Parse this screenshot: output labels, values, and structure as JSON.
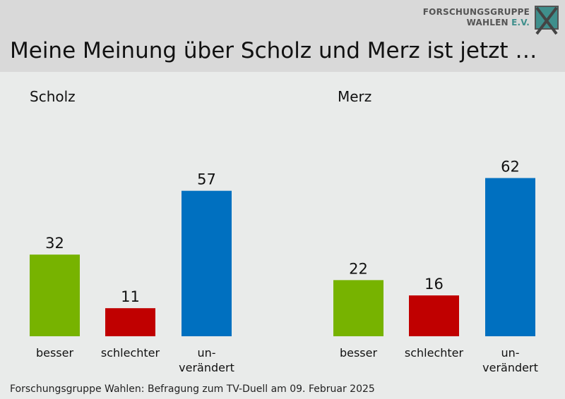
{
  "header": {
    "title": "Meine Meinung über Scholz und Merz ist jetzt …",
    "logo_line1": "FORSCHUNGSGRUPPE",
    "logo_line2_a": "WAHLEN",
    "logo_line2_b": "E.V."
  },
  "footer": {
    "source": "Forschungsgruppe Wahlen: Befragung zum TV-Duell am 09. Februar 2025"
  },
  "colors": {
    "besser": "#77b300",
    "schlechter": "#c00000",
    "unverändert": "#0070c0"
  },
  "chart_data": [
    {
      "type": "bar",
      "title": "Scholz",
      "categories": [
        "besser",
        "schlechter",
        "un-\nverändert"
      ],
      "values": [
        32,
        11,
        57
      ]
    },
    {
      "type": "bar",
      "title": "Merz",
      "categories": [
        "besser",
        "schlechter",
        "un-\nverändert"
      ],
      "values": [
        22,
        16,
        62
      ]
    }
  ]
}
